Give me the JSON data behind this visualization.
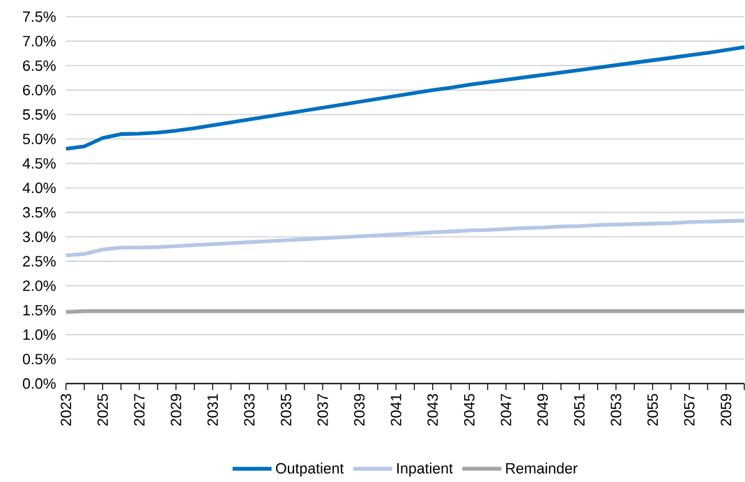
{
  "chart_data": {
    "type": "line",
    "x": [
      2023,
      2024,
      2025,
      2026,
      2027,
      2028,
      2029,
      2030,
      2031,
      2032,
      2033,
      2034,
      2035,
      2036,
      2037,
      2038,
      2039,
      2040,
      2041,
      2042,
      2043,
      2044,
      2045,
      2046,
      2047,
      2048,
      2049,
      2050,
      2051,
      2052,
      2053,
      2054,
      2055,
      2056,
      2057,
      2058,
      2059,
      2060
    ],
    "series": [
      {
        "name": "Outpatient",
        "color": "#0070c0",
        "values": [
          4.8,
          4.85,
          5.02,
          5.1,
          5.11,
          5.13,
          5.17,
          5.22,
          5.28,
          5.34,
          5.4,
          5.46,
          5.52,
          5.58,
          5.64,
          5.7,
          5.76,
          5.82,
          5.88,
          5.94,
          6.0,
          6.05,
          6.11,
          6.16,
          6.21,
          6.26,
          6.31,
          6.36,
          6.41,
          6.46,
          6.51,
          6.56,
          6.61,
          6.66,
          6.71,
          6.76,
          6.82,
          6.88
        ]
      },
      {
        "name": "Inpatient",
        "color": "#b4c7e7",
        "values": [
          2.62,
          2.65,
          2.74,
          2.78,
          2.78,
          2.79,
          2.81,
          2.83,
          2.85,
          2.87,
          2.89,
          2.91,
          2.93,
          2.95,
          2.97,
          2.99,
          3.01,
          3.03,
          3.05,
          3.07,
          3.09,
          3.11,
          3.13,
          3.14,
          3.16,
          3.18,
          3.19,
          3.21,
          3.22,
          3.24,
          3.25,
          3.26,
          3.27,
          3.28,
          3.3,
          3.31,
          3.32,
          3.33
        ]
      },
      {
        "name": "Remainder",
        "color": "#a5a5a5",
        "values": [
          1.46,
          1.48,
          1.48,
          1.48,
          1.48,
          1.48,
          1.48,
          1.48,
          1.48,
          1.48,
          1.48,
          1.48,
          1.48,
          1.48,
          1.48,
          1.48,
          1.48,
          1.48,
          1.48,
          1.48,
          1.48,
          1.48,
          1.48,
          1.48,
          1.48,
          1.48,
          1.48,
          1.48,
          1.48,
          1.48,
          1.48,
          1.48,
          1.48,
          1.48,
          1.48,
          1.48,
          1.48,
          1.48
        ]
      }
    ],
    "xlim": [
      2023,
      2060
    ],
    "xticks": [
      2023,
      {
        "value": 2024,
        "label": null
      },
      2025,
      {
        "value": 2026,
        "label": null
      },
      2027,
      {
        "value": 2028,
        "label": null
      },
      2029,
      {
        "value": 2030,
        "label": null
      },
      2031,
      {
        "value": 2032,
        "label": null
      },
      2033,
      {
        "value": 2034,
        "label": null
      },
      2035,
      {
        "value": 2036,
        "label": null
      },
      2037,
      {
        "value": 2038,
        "label": null
      },
      2039,
      {
        "value": 2040,
        "label": null
      },
      2041,
      {
        "value": 2042,
        "label": null
      },
      2043,
      {
        "value": 2044,
        "label": null
      },
      2045,
      {
        "value": 2046,
        "label": null
      },
      2047,
      {
        "value": 2048,
        "label": null
      },
      2049,
      {
        "value": 2050,
        "label": null
      },
      2051,
      {
        "value": 2052,
        "label": null
      },
      2053,
      {
        "value": 2054,
        "label": null
      },
      2055,
      {
        "value": 2056,
        "label": null
      },
      2057,
      {
        "value": 2058,
        "label": null
      },
      2059,
      {
        "value": 2060,
        "label": null
      }
    ],
    "ylim": [
      0,
      7.5
    ],
    "yticks": [
      {
        "value": 0,
        "label": "0.0%"
      },
      {
        "value": 0.5,
        "label": "0.5%"
      },
      {
        "value": 1,
        "label": "1.0%"
      },
      {
        "value": 1.5,
        "label": "1.5%"
      },
      {
        "value": 2,
        "label": "2.0%"
      },
      {
        "value": 2.5,
        "label": "2.5%"
      },
      {
        "value": 3,
        "label": "3.0%"
      },
      {
        "value": 3.5,
        "label": "3.5%"
      },
      {
        "value": 4,
        "label": "4.0%"
      },
      {
        "value": 4.5,
        "label": "4.5%"
      },
      {
        "value": 5,
        "label": "5.0%"
      },
      {
        "value": 5.5,
        "label": "5.5%"
      },
      {
        "value": 6,
        "label": "6.0%"
      },
      {
        "value": 6.5,
        "label": "6.5%"
      },
      {
        "value": 7,
        "label": "7.0%"
      },
      {
        "value": 7.5,
        "label": "7.5%"
      }
    ],
    "grid": "y",
    "legend": "bottom",
    "marker": "none",
    "line_style": "solid"
  }
}
